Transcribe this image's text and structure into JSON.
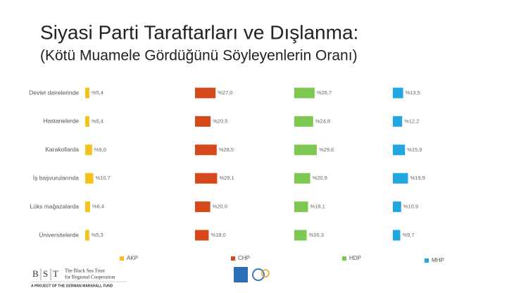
{
  "chart_data": {
    "type": "bar",
    "orientation": "horizontal",
    "title": "Siyasi Parti Taraftarları ve Dışlanma:",
    "subtitle": "(Kötü Muamele Gördüğünü Söyleyenlerin Oranı)",
    "categories": [
      "Devlet dairelerinde",
      "Hastanelerde",
      "Karakollarda",
      "İş başvurularında",
      "Lüks mağazalarda",
      "Üniversitelerde"
    ],
    "series": [
      {
        "name": "AKP",
        "color": "#f3c21b",
        "values": [
          5.4,
          5.4,
          9.0,
          10.7,
          6.4,
          5.3
        ],
        "value_labels": [
          "%5,4",
          "%5,4",
          "%9,0",
          "%10,7",
          "%6,4",
          "%5,3"
        ]
      },
      {
        "name": "CHP",
        "color": "#d5481c",
        "values": [
          27.0,
          20.5,
          28.5,
          29.1,
          20.0,
          18.0
        ],
        "value_labels": [
          "%27,0",
          "%20,5",
          "%28,5",
          "%29,1",
          "%20,0",
          "%18,0"
        ]
      },
      {
        "name": "HDP",
        "color": "#7dc852",
        "values": [
          26.7,
          24.8,
          29.6,
          20.9,
          18.1,
          16.3
        ],
        "value_labels": [
          "%26,7",
          "%24,8",
          "%29,6",
          "%20,9",
          "%18,1",
          "%16,3"
        ]
      },
      {
        "name": "MHP",
        "color": "#1ea7e1",
        "values": [
          13.5,
          12.2,
          15.9,
          19.9,
          10.9,
          9.7
        ],
        "value_labels": [
          "%13,5",
          "%12,2",
          "%15,9",
          "%19,9",
          "%10,9",
          "%9,7"
        ]
      }
    ],
    "legend": "bottom"
  },
  "footer": {
    "logo_letters": [
      "B",
      "S",
      "T"
    ],
    "organization": [
      "The Black Sea Trust",
      "for Regional Cooperation"
    ],
    "tagline": "A PROJECT OF THE GERMAN MARSHALL FUND"
  }
}
